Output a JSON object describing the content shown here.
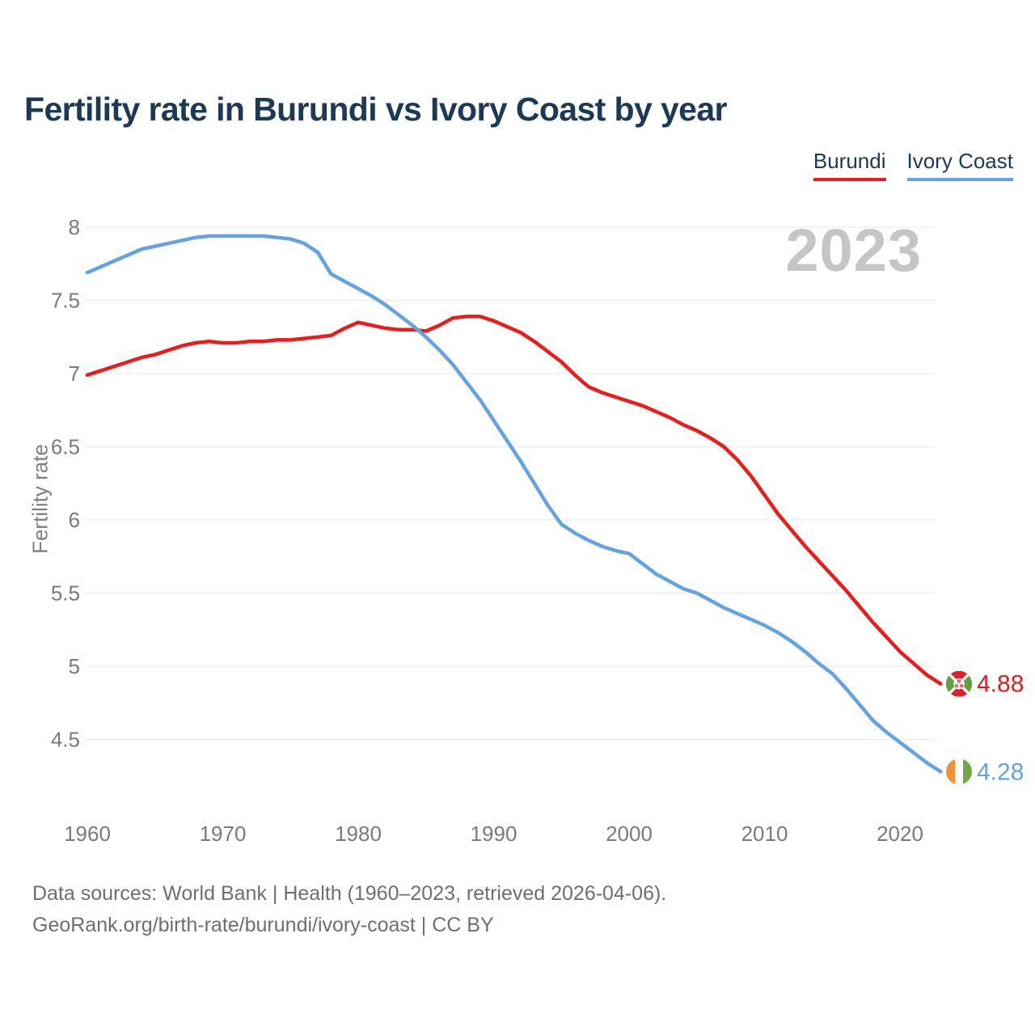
{
  "title": "Fertility rate in Burundi vs Ivory Coast by year",
  "watermark": "2023",
  "legend": {
    "items": [
      {
        "label": "Burundi",
        "color": "#ec1c1c"
      },
      {
        "label": "Ivory Coast",
        "color": "#63a3e3"
      }
    ]
  },
  "footer": {
    "line1": "Data sources: World Bank | Health (1960–2023, retrieved 2026-04-06).",
    "line2": "GeoRank.org/birth-rate/burundi/ivory-coast | CC BY"
  },
  "chart_data": {
    "type": "line",
    "title": "Fertility rate in Burundi vs Ivory Coast by year",
    "xlabel": "",
    "ylabel": "Fertility rate",
    "grid": "horizontal",
    "legend_position": "top-right",
    "ylim": [
      4.2,
      8.1
    ],
    "xlim": [
      1960,
      2023
    ],
    "yticks": [
      8,
      7.5,
      7,
      6.5,
      6,
      5.5,
      5,
      4.5
    ],
    "xticks": [
      1960,
      1970,
      1980,
      1990,
      2000,
      2010,
      2020
    ],
    "x": [
      1960,
      1961,
      1962,
      1963,
      1964,
      1965,
      1966,
      1967,
      1968,
      1969,
      1970,
      1971,
      1972,
      1973,
      1974,
      1975,
      1976,
      1977,
      1978,
      1979,
      1980,
      1981,
      1982,
      1983,
      1984,
      1985,
      1986,
      1987,
      1988,
      1989,
      1990,
      1991,
      1992,
      1993,
      1994,
      1995,
      1996,
      1997,
      1998,
      1999,
      2000,
      2001,
      2002,
      2003,
      2004,
      2005,
      2006,
      2007,
      2008,
      2009,
      2010,
      2011,
      2012,
      2013,
      2014,
      2015,
      2016,
      2017,
      2018,
      2019,
      2020,
      2021,
      2022,
      2023
    ],
    "series": [
      {
        "name": "Burundi",
        "color": "#ec1c1c",
        "end_label": "4.88",
        "flag": "burundi",
        "values": [
          6.99,
          7.02,
          7.05,
          7.08,
          7.11,
          7.13,
          7.16,
          7.19,
          7.21,
          7.22,
          7.21,
          7.21,
          7.22,
          7.22,
          7.23,
          7.23,
          7.24,
          7.25,
          7.26,
          7.31,
          7.35,
          7.33,
          7.31,
          7.3,
          7.3,
          7.29,
          7.33,
          7.38,
          7.39,
          7.39,
          7.36,
          7.32,
          7.28,
          7.22,
          7.15,
          7.08,
          6.99,
          6.91,
          6.87,
          6.84,
          6.81,
          6.78,
          6.74,
          6.7,
          6.65,
          6.61,
          6.56,
          6.5,
          6.41,
          6.3,
          6.17,
          6.04,
          5.93,
          5.82,
          5.72,
          5.62,
          5.52,
          5.41,
          5.3,
          5.2,
          5.1,
          5.02,
          4.94,
          4.88
        ]
      },
      {
        "name": "Ivory Coast",
        "color": "#63a3e3",
        "end_label": "4.28",
        "flag": "ivory-coast",
        "values": [
          7.69,
          7.73,
          7.77,
          7.81,
          7.85,
          7.87,
          7.89,
          7.91,
          7.93,
          7.94,
          7.94,
          7.94,
          7.94,
          7.94,
          7.93,
          7.92,
          7.89,
          7.83,
          7.68,
          7.63,
          7.58,
          7.53,
          7.47,
          7.4,
          7.33,
          7.25,
          7.16,
          7.06,
          6.94,
          6.82,
          6.68,
          6.54,
          6.4,
          6.25,
          6.1,
          5.97,
          5.91,
          5.86,
          5.82,
          5.79,
          5.77,
          5.7,
          5.63,
          5.58,
          5.53,
          5.5,
          5.45,
          5.4,
          5.36,
          5.32,
          5.28,
          5.23,
          5.17,
          5.1,
          5.02,
          4.95,
          4.85,
          4.74,
          4.63,
          4.55,
          4.48,
          4.41,
          4.34,
          4.28
        ]
      }
    ]
  }
}
